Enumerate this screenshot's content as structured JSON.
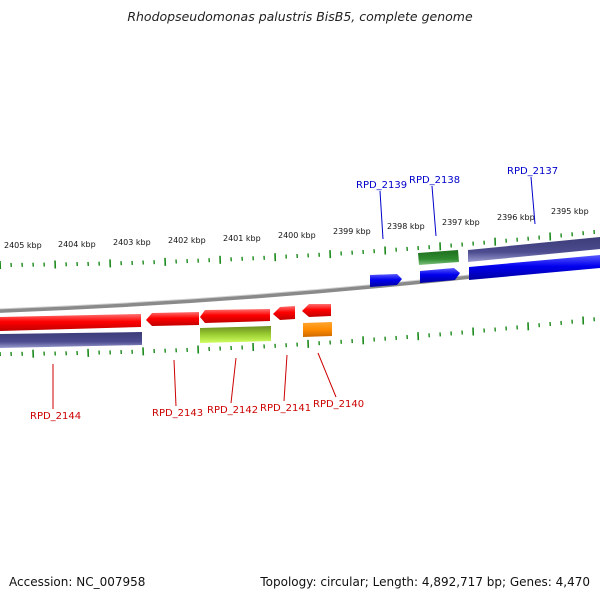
{
  "title": "Rhodopseudomonas palustris BisB5, complete genome",
  "footer": {
    "accession": "Accession: NC_007958",
    "summary": "Topology: circular; Length: 4,892,717 bp; Genes: 4,470"
  },
  "ticks": [
    "2405 kbp",
    "2404 kbp",
    "2403 kbp",
    "2402 kbp",
    "2401 kbp",
    "2400 kbp",
    "2399 kbp",
    "2398 kbp",
    "2397 kbp",
    "2396 kbp",
    "2395 kbp"
  ],
  "genes": [
    {
      "id": "RPD_2144",
      "strand": "reverse"
    },
    {
      "id": "RPD_2143",
      "strand": "reverse"
    },
    {
      "id": "RPD_2142",
      "strand": "reverse"
    },
    {
      "id": "RPD_2141",
      "strand": "reverse"
    },
    {
      "id": "RPD_2140",
      "strand": "reverse"
    },
    {
      "id": "RPD_2139",
      "strand": "forward"
    },
    {
      "id": "RPD_2138",
      "strand": "forward"
    },
    {
      "id": "RPD_2137",
      "strand": "forward"
    }
  ],
  "colors": {
    "backbone": "#8a8a8a",
    "tick": "#1a8a1a",
    "cds_reverse": "#ff0000",
    "cds_forward": "#0000ee",
    "rna_green": "#2e8b2e",
    "rna_yellowgreen": "#9acd32",
    "rna_orange": "#ff8c00",
    "gene_slate": "#4b4b8f",
    "label_reverse": "#cc0000",
    "label_forward": "#0000cc"
  }
}
